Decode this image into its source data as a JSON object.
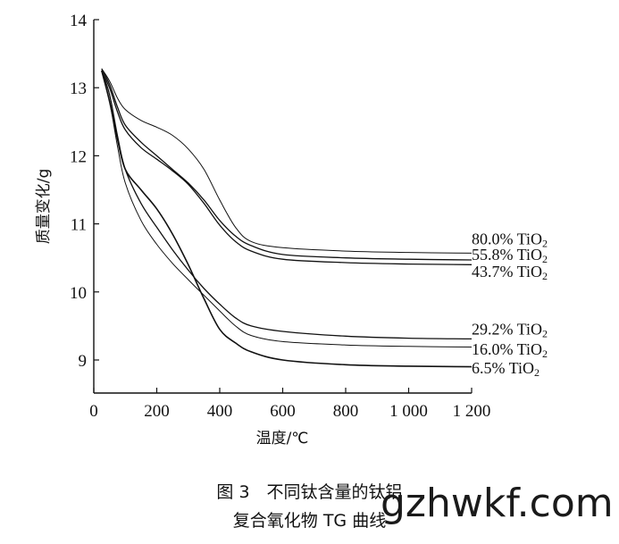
{
  "chart_data": {
    "type": "line",
    "title": "",
    "xlabel": "温度/℃",
    "ylabel": "质量变化/g",
    "xlim": [
      0,
      1200
    ],
    "ylim": [
      8.6,
      14
    ],
    "x_ticks": [
      0,
      200,
      400,
      600,
      800,
      1000,
      1200
    ],
    "x_tick_labels": [
      "0",
      "200",
      "400",
      "600",
      "800",
      "1 000",
      "1 200"
    ],
    "y_ticks": [
      9,
      10,
      11,
      12,
      13,
      14
    ],
    "y_tick_labels": [
      "9",
      "10",
      "11",
      "12",
      "13",
      "14"
    ],
    "grid": false,
    "legend": "inline labels at right",
    "series": [
      {
        "name": "80.0% TiO2",
        "label_main": "80.0% TiO",
        "label_sub": "2",
        "label_y": 10.78,
        "x": [
          25,
          50,
          75,
          100,
          150,
          200,
          250,
          300,
          350,
          400,
          450,
          500,
          600,
          800,
          1000,
          1200
        ],
        "y": [
          13.28,
          13.1,
          12.85,
          12.68,
          12.52,
          12.42,
          12.3,
          12.1,
          11.8,
          11.35,
          10.95,
          10.74,
          10.65,
          10.6,
          10.58,
          10.57
        ]
      },
      {
        "name": "55.8% TiO2",
        "label_main": "55.8% TiO",
        "label_sub": "2",
        "label_y": 10.55,
        "x": [
          25,
          50,
          75,
          100,
          150,
          200,
          250,
          300,
          350,
          400,
          450,
          500,
          600,
          800,
          1000,
          1200
        ],
        "y": [
          13.28,
          13.05,
          12.72,
          12.45,
          12.2,
          12.0,
          11.8,
          11.6,
          11.35,
          11.05,
          10.82,
          10.68,
          10.55,
          10.5,
          10.48,
          10.47
        ]
      },
      {
        "name": "43.7% TiO2",
        "label_main": "43.7% TiO",
        "label_sub": "2",
        "label_y": 10.3,
        "x": [
          25,
          50,
          75,
          100,
          150,
          200,
          250,
          300,
          350,
          400,
          450,
          500,
          600,
          800,
          1000,
          1200
        ],
        "y": [
          13.25,
          13.0,
          12.65,
          12.38,
          12.12,
          11.95,
          11.78,
          11.58,
          11.3,
          10.98,
          10.74,
          10.6,
          10.48,
          10.43,
          10.41,
          10.4
        ]
      },
      {
        "name": "29.2% TiO2",
        "label_main": "29.2% TiO",
        "label_sub": "2",
        "label_y": 9.45,
        "x": [
          25,
          50,
          75,
          100,
          150,
          200,
          250,
          300,
          350,
          400,
          450,
          500,
          600,
          800,
          1000,
          1200
        ],
        "y": [
          13.25,
          12.9,
          12.3,
          11.8,
          11.3,
          10.95,
          10.62,
          10.32,
          10.05,
          9.82,
          9.62,
          9.5,
          9.42,
          9.35,
          9.32,
          9.31
        ]
      },
      {
        "name": "16.0% TiO2",
        "label_main": "16.0% TiO",
        "label_sub": "2",
        "label_y": 9.16,
        "x": [
          25,
          50,
          75,
          100,
          150,
          200,
          250,
          300,
          350,
          400,
          450,
          500,
          600,
          800,
          1000,
          1200
        ],
        "y": [
          13.25,
          12.8,
          12.15,
          11.6,
          11.05,
          10.7,
          10.42,
          10.18,
          9.95,
          9.72,
          9.5,
          9.36,
          9.27,
          9.22,
          9.2,
          9.19
        ]
      },
      {
        "name": "6.5% TiO2",
        "label_main": "6.5% TiO",
        "label_sub": "2",
        "label_y": 8.88,
        "x": [
          25,
          50,
          75,
          100,
          150,
          200,
          250,
          300,
          350,
          400,
          450,
          500,
          600,
          800,
          1000,
          1200
        ],
        "y": [
          13.25,
          12.8,
          12.25,
          11.8,
          11.5,
          11.22,
          10.85,
          10.4,
          9.9,
          9.45,
          9.25,
          9.12,
          9.0,
          8.93,
          8.91,
          8.9
        ]
      }
    ]
  },
  "caption": {
    "line1": "图 3　不同钛含量的钛铝",
    "line2": "复合氧化物 TG 曲线"
  },
  "watermark": "gzhwkf.com"
}
